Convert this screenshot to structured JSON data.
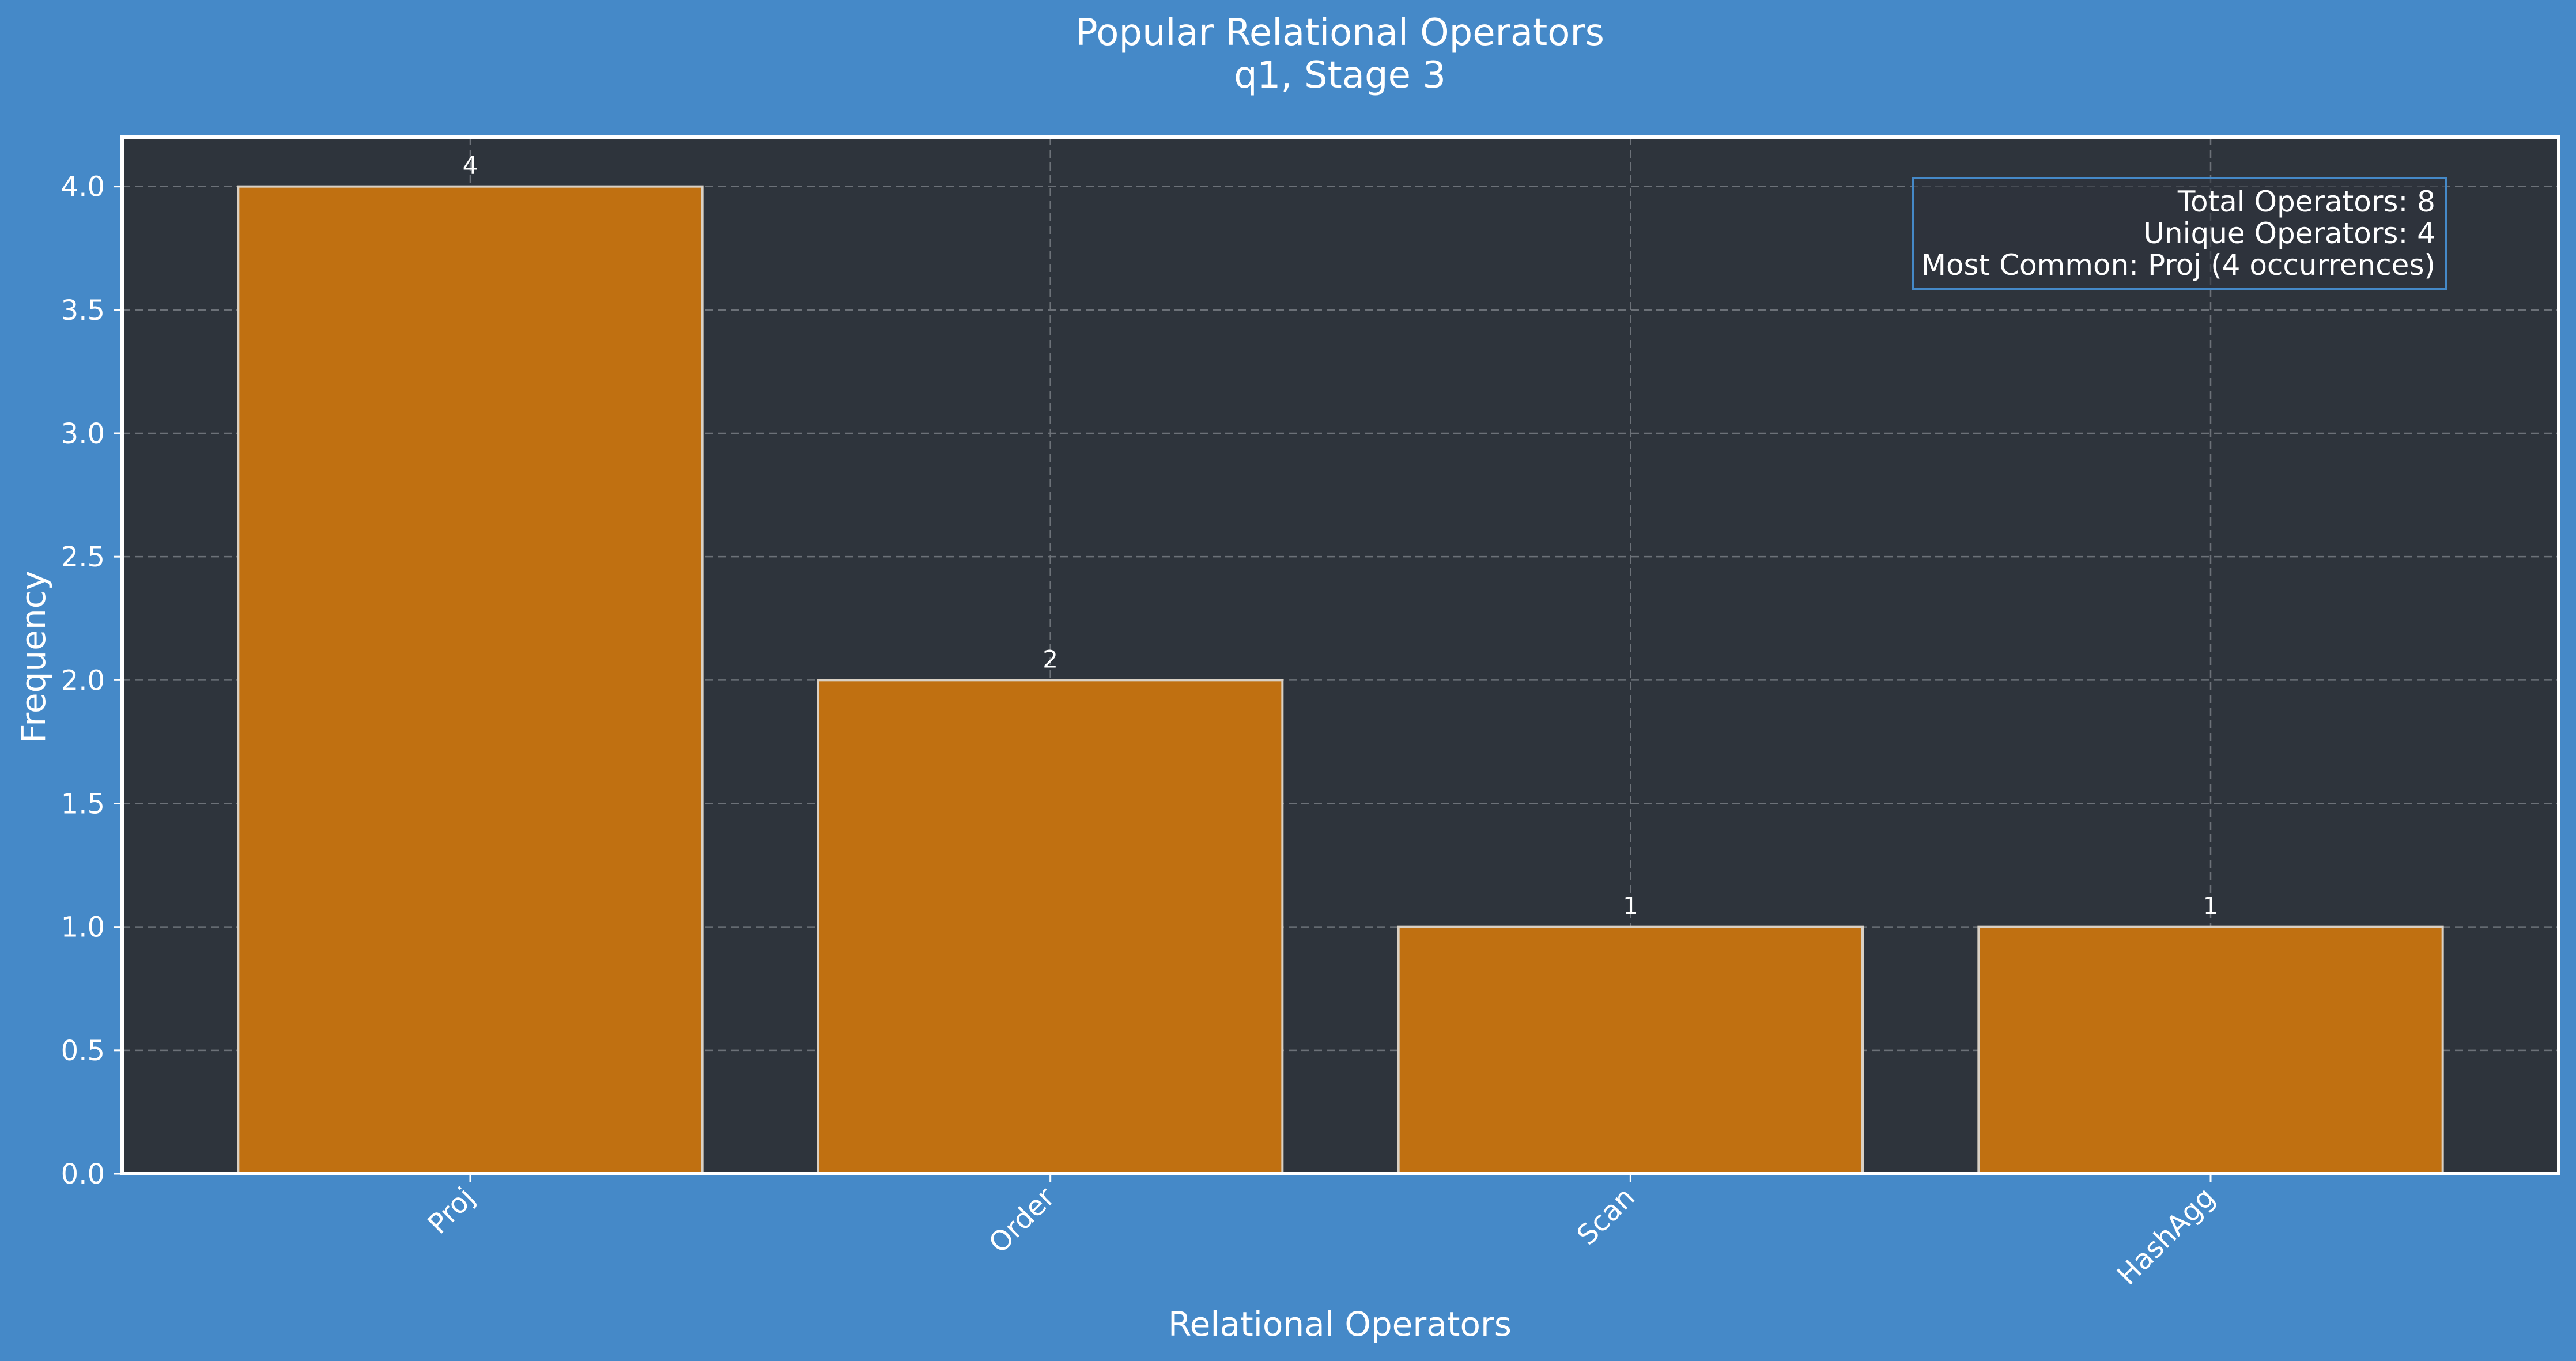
{
  "chart_data": {
    "type": "bar",
    "title": "Popular Relational Operators",
    "subtitle": "q1, Stage 3",
    "xlabel": "Relational Operators",
    "ylabel": "Frequency",
    "categories": [
      "Proj",
      "Order",
      "Scan",
      "HashAgg"
    ],
    "values": [
      4,
      2,
      1,
      1
    ],
    "value_labels": [
      "4",
      "2",
      "1",
      "1"
    ],
    "ylim": [
      0,
      4.2
    ],
    "yticks": [
      0.0,
      0.5,
      1.0,
      1.5,
      2.0,
      2.5,
      3.0,
      3.5,
      4.0
    ],
    "ytick_labels": [
      "0.0",
      "0.5",
      "1.0",
      "1.5",
      "2.0",
      "2.5",
      "3.0",
      "3.5",
      "4.0"
    ],
    "grid": true,
    "stats_box": {
      "placement": "top-right",
      "lines": [
        "Total Operators: 8",
        "Unique Operators: 4",
        "Most Common: Proj (4 occurrences)"
      ]
    }
  },
  "colors": {
    "figure_bg": "#4589c8",
    "plot_bg": "#2e343c",
    "bar_fill": "#c07011",
    "bar_edge": "#d9d0c4",
    "grid": "#6c7178",
    "axes": "#ffffff",
    "stats_border": "#4589c8"
  }
}
